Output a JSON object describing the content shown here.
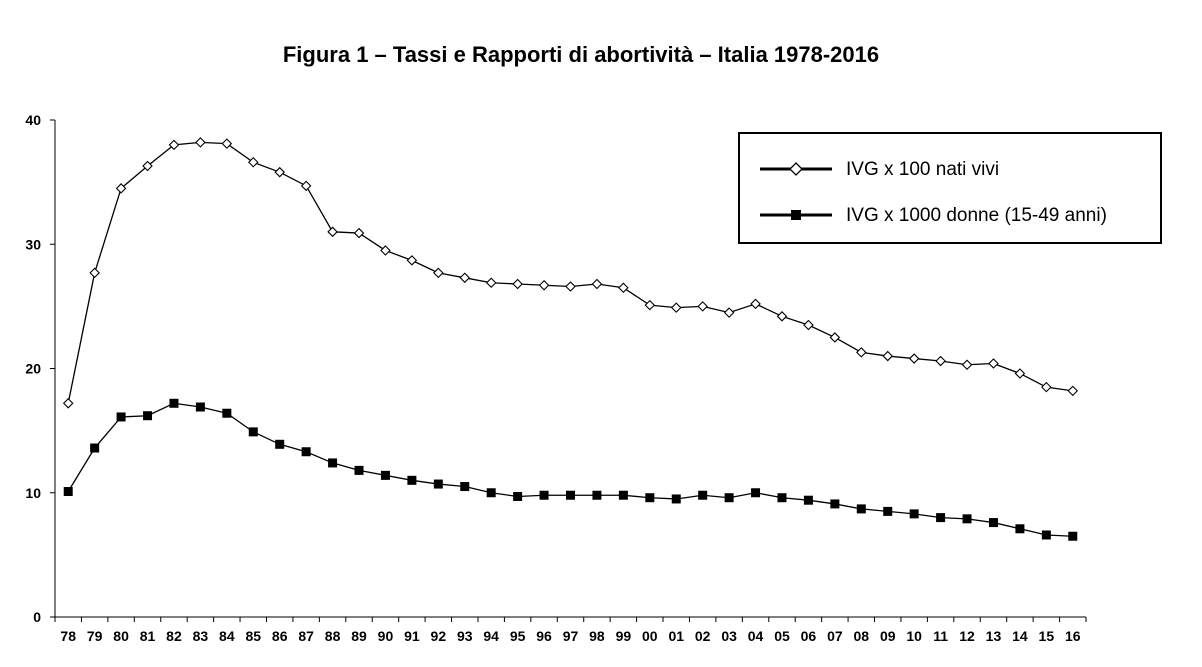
{
  "chart_data": {
    "type": "line",
    "title": "Figura 1 – Tassi e Rapporti di abortività – Italia 1978-2016",
    "xlabel": "",
    "ylabel": "",
    "ylim": [
      0,
      40
    ],
    "yticks": [
      "0",
      "10",
      "20",
      "30",
      "40"
    ],
    "categories": [
      "78",
      "79",
      "80",
      "81",
      "82",
      "83",
      "84",
      "85",
      "86",
      "87",
      "88",
      "89",
      "90",
      "91",
      "92",
      "93",
      "94",
      "95",
      "96",
      "97",
      "98",
      "99",
      "00",
      "01",
      "02",
      "03",
      "04",
      "05",
      "06",
      "07",
      "08",
      "09",
      "10",
      "11",
      "12",
      "13",
      "14",
      "15",
      "16"
    ],
    "series": [
      {
        "name": "IVG x 100 nati vivi",
        "marker": "diamond-open",
        "values": [
          17.2,
          27.7,
          34.5,
          36.3,
          38.0,
          38.2,
          38.1,
          36.6,
          35.8,
          34.7,
          31.0,
          30.9,
          29.5,
          28.7,
          27.7,
          27.3,
          26.9,
          26.8,
          26.7,
          26.6,
          26.8,
          26.5,
          25.1,
          24.9,
          25.0,
          24.5,
          25.2,
          24.2,
          23.5,
          22.5,
          21.3,
          21.0,
          20.8,
          20.6,
          20.3,
          20.4,
          19.6,
          18.5,
          18.2
        ]
      },
      {
        "name": "IVG x 1000 donne (15-49 anni)",
        "marker": "square-filled",
        "values": [
          10.1,
          13.6,
          16.1,
          16.2,
          17.2,
          16.9,
          16.4,
          14.9,
          13.9,
          13.3,
          12.4,
          11.8,
          11.4,
          11.0,
          10.7,
          10.5,
          10.0,
          9.7,
          9.8,
          9.8,
          9.8,
          9.8,
          9.6,
          9.5,
          9.8,
          9.6,
          10.0,
          9.6,
          9.4,
          9.1,
          8.7,
          8.5,
          8.3,
          8.0,
          7.9,
          7.6,
          7.1,
          6.6,
          6.5
        ]
      }
    ],
    "legend_position": "top-right",
    "grid": false,
    "colors": {
      "line": "#000000",
      "marker_open_fill": "#ffffff",
      "marker_filled": "#000000"
    }
  }
}
